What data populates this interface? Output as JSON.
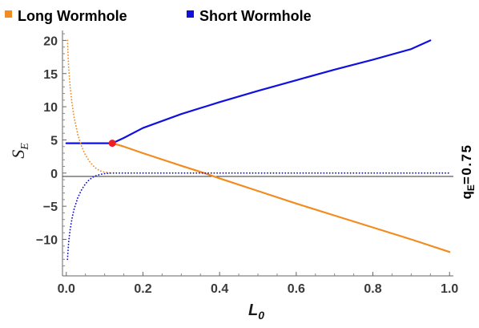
{
  "chart_data": {
    "type": "line",
    "legend": {
      "position": "top",
      "items": [
        {
          "label": "Long Wormhole",
          "color": "#f28c1e"
        },
        {
          "label": "Short Wormhole",
          "color": "#1010e0"
        }
      ]
    },
    "xlabel": {
      "main": "L",
      "sub": "0"
    },
    "ylabel": {
      "main": "S",
      "sub": "E"
    },
    "side_label": "q",
    "side_label_sub": "E",
    "side_label_value": "=0.75",
    "xlim": [
      -0.01,
      1.01
    ],
    "ylim": [
      -15.5,
      21.5
    ],
    "x_ticks": [
      0.0,
      0.2,
      0.4,
      0.6,
      0.8,
      1.0
    ],
    "x_tick_labels": [
      "0.0",
      "0.2",
      "0.4",
      "0.6",
      "0.8",
      "1.0"
    ],
    "y_ticks": [
      -10,
      -5,
      0,
      5,
      10,
      15,
      20
    ],
    "y_tick_labels": [
      "−10",
      "−5",
      "0",
      "5",
      "10",
      "15",
      "20"
    ],
    "grid": false,
    "series": [
      {
        "name": "Short Wormhole",
        "color": "#1010e0",
        "style": "solid",
        "x": [
          0.0,
          0.12,
          0.15,
          0.2,
          0.3,
          0.4,
          0.5,
          0.6,
          0.7,
          0.8,
          0.9,
          0.95
        ],
        "y": [
          4.5,
          4.5,
          5.3,
          6.8,
          8.9,
          10.7,
          12.4,
          14.0,
          15.6,
          17.1,
          18.7,
          20.0
        ]
      },
      {
        "name": "Long Wormhole",
        "color": "#f28c1e",
        "style": "solid",
        "x": [
          0.12,
          0.15,
          0.2,
          0.3,
          0.36,
          0.4,
          0.5,
          0.6,
          0.7,
          0.8,
          0.9,
          1.0
        ],
        "y": [
          4.5,
          4.0,
          3.0,
          1.1,
          0.0,
          -0.8,
          -2.7,
          -4.6,
          -6.4,
          -8.2,
          -10.0,
          -11.9
        ]
      },
      {
        "name": "Long Wormhole",
        "color": "#f28c1e",
        "style": "dotted",
        "x": [
          0.003,
          0.006,
          0.01,
          0.015,
          0.02,
          0.03,
          0.04,
          0.05,
          0.06,
          0.07,
          0.08,
          0.09,
          0.1,
          0.11,
          0.12
        ],
        "y": [
          20.0,
          16.0,
          13.0,
          10.5,
          8.5,
          5.8,
          4.0,
          2.7,
          1.8,
          1.1,
          0.6,
          0.3,
          0.12,
          0.04,
          0.0
        ]
      },
      {
        "name": "Short Wormhole",
        "color": "#1010e0",
        "style": "dotted",
        "x": [
          0.003,
          0.006,
          0.01,
          0.015,
          0.02,
          0.03,
          0.04,
          0.05,
          0.06,
          0.07,
          0.08,
          0.09,
          0.1,
          0.11,
          0.12,
          0.3,
          0.5,
          0.7,
          0.9,
          1.0
        ],
        "y": [
          -13.0,
          -10.5,
          -8.5,
          -6.8,
          -5.5,
          -3.7,
          -2.5,
          -1.6,
          -1.0,
          -0.6,
          -0.35,
          -0.18,
          -0.08,
          -0.02,
          0.0,
          0.0,
          0.0,
          0.0,
          0.0,
          0.0
        ]
      }
    ],
    "points": [
      {
        "x": 0.12,
        "y": 4.5,
        "color": "#ee1c25"
      }
    ]
  }
}
